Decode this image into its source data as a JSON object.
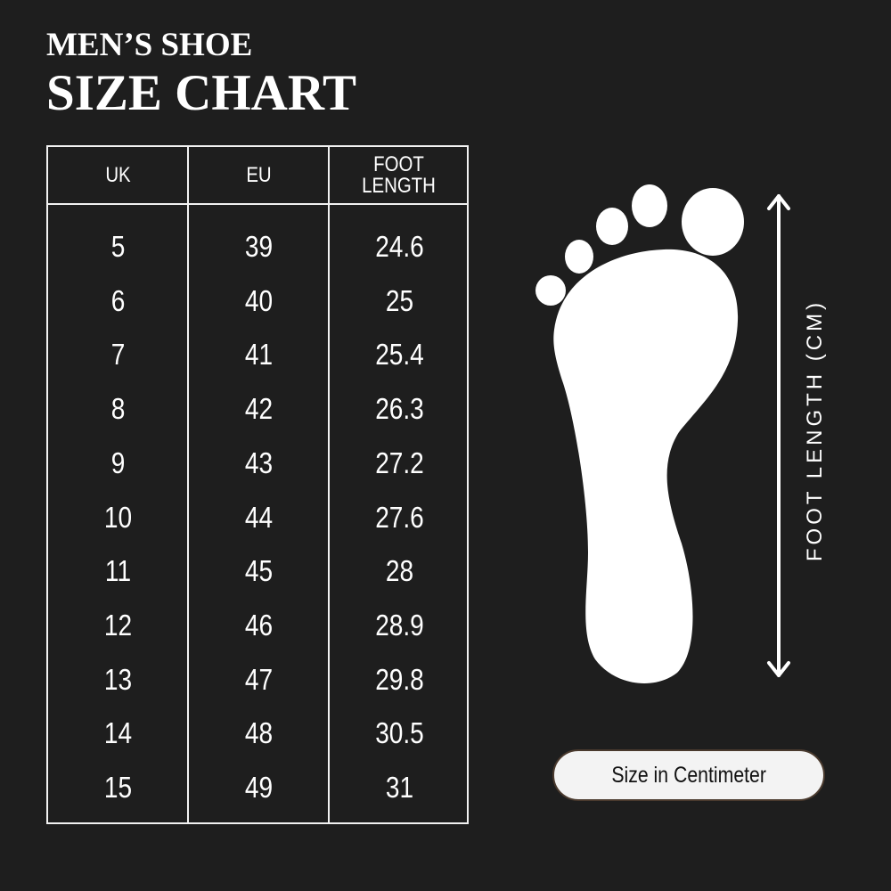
{
  "title": {
    "line1": "MEN’S SHOE",
    "line2": "SIZE CHART"
  },
  "table": {
    "headers": [
      "UK",
      "EU",
      "FOOT LENGTH"
    ],
    "rows": [
      [
        "5",
        "39",
        "24.6"
      ],
      [
        "6",
        "40",
        "25"
      ],
      [
        "7",
        "41",
        "25.4"
      ],
      [
        "8",
        "42",
        "26.3"
      ],
      [
        "9",
        "43",
        "27.2"
      ],
      [
        "10",
        "44",
        "27.6"
      ],
      [
        "11",
        "45",
        "28"
      ],
      [
        "12",
        "46",
        "28.9"
      ],
      [
        "13",
        "47",
        "29.8"
      ],
      [
        "14",
        "48",
        "30.5"
      ],
      [
        "15",
        "49",
        "31"
      ]
    ]
  },
  "diagram": {
    "axis_label": "FOOT LENGTH (CM)",
    "icon": "foot-icon"
  },
  "unit_badge": "Size in Centimeter",
  "colors": {
    "background": "#1e1e1e",
    "foreground": "#ffffff",
    "badge": "#f3f3f3"
  }
}
